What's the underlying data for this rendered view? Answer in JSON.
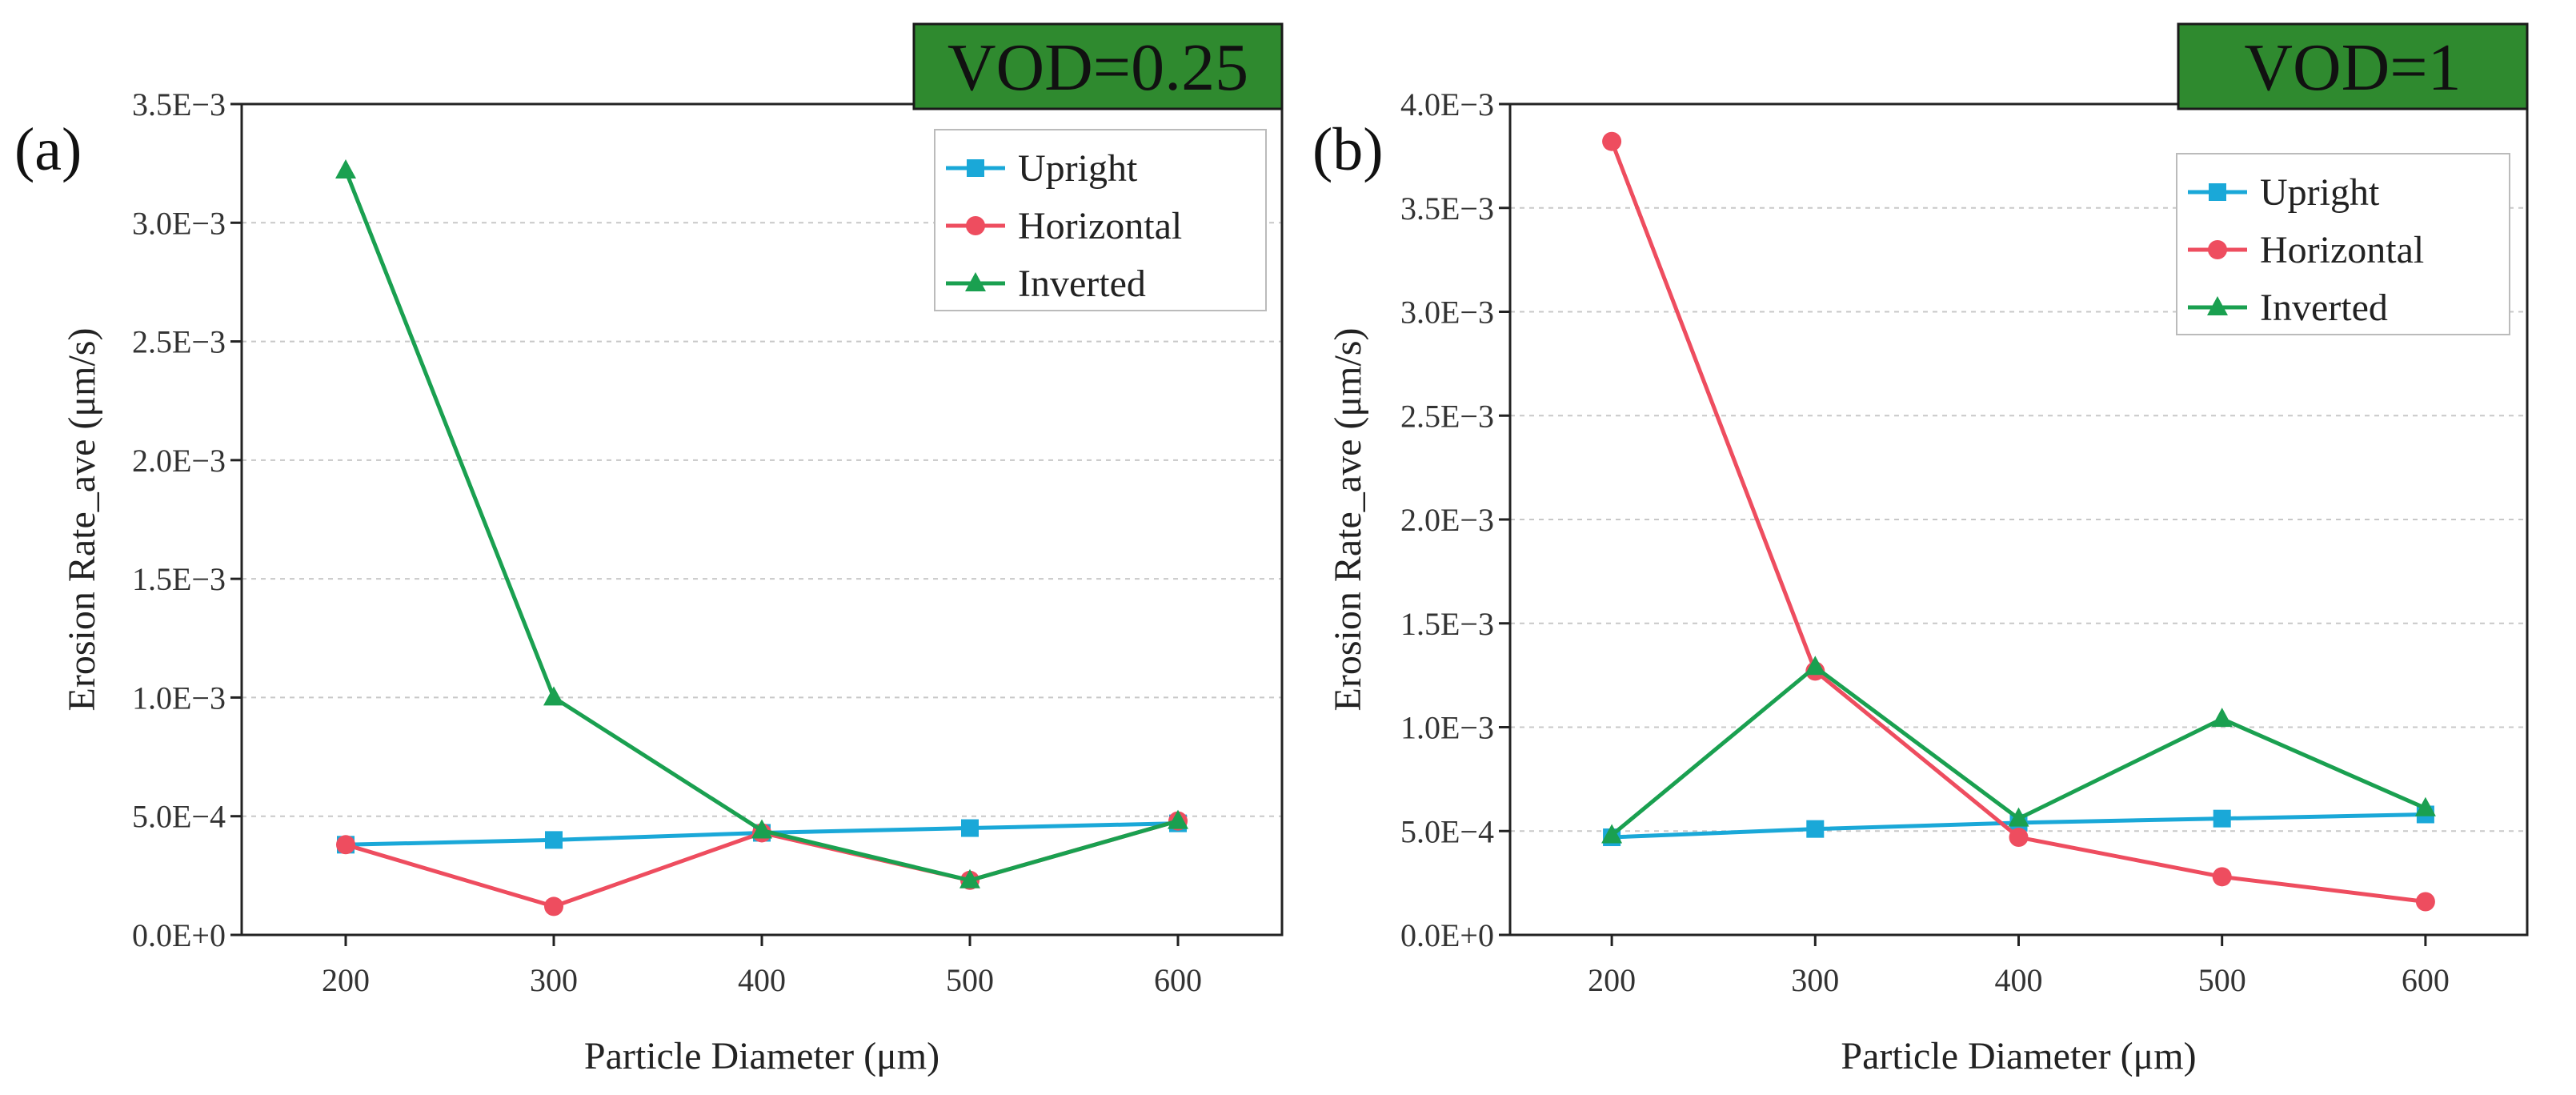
{
  "chart_data": [
    {
      "type": "line",
      "panel_label": "(a)",
      "badge": "VOD=0.25",
      "xlabel": "Particle Diameter (μm)",
      "ylabel": "Erosion Rate_ave  (μm/s)",
      "x": [
        200,
        300,
        400,
        500,
        600
      ],
      "xlim": [
        150,
        650
      ],
      "xticks": [
        "200",
        "300",
        "400",
        "500",
        "600"
      ],
      "ylim": [
        0,
        0.0035
      ],
      "yticks": [
        {
          "value": 0,
          "label": "0.0E+0"
        },
        {
          "value": 0.0005,
          "label": "5.0E−4"
        },
        {
          "value": 0.001,
          "label": "1.0E−3"
        },
        {
          "value": 0.0015,
          "label": "1.5E−3"
        },
        {
          "value": 0.002,
          "label": "2.0E−3"
        },
        {
          "value": 0.0025,
          "label": "2.5E−3"
        },
        {
          "value": 0.003,
          "label": "3.0E−3"
        },
        {
          "value": 0.0035,
          "label": "3.5E−3"
        }
      ],
      "grid": "horizontal dashed",
      "legend_position": "top-right",
      "series": [
        {
          "name": "Upright",
          "color": "#1aa8d8",
          "marker": "square",
          "values": [
            0.00038,
            0.0004,
            0.00043,
            0.00045,
            0.00047
          ]
        },
        {
          "name": "Horizontal",
          "color": "#ee4d5f",
          "marker": "circle",
          "values": [
            0.00038,
            0.00012,
            0.00043,
            0.00023,
            0.00048
          ]
        },
        {
          "name": "Inverted",
          "color": "#1aa050",
          "marker": "triangle",
          "values": [
            0.00322,
            0.001,
            0.00044,
            0.00023,
            0.00048
          ]
        }
      ]
    },
    {
      "type": "line",
      "panel_label": "(b)",
      "badge": "VOD=1",
      "xlabel": "Particle Diameter (μm)",
      "ylabel": "Erosion Rate_ave  (μm/s)",
      "x": [
        200,
        300,
        400,
        500,
        600
      ],
      "xlim": [
        150,
        650
      ],
      "xticks": [
        "200",
        "300",
        "400",
        "500",
        "600"
      ],
      "ylim": [
        0,
        0.004
      ],
      "yticks": [
        {
          "value": 0,
          "label": "0.0E+0"
        },
        {
          "value": 0.0005,
          "label": "5.0E−4"
        },
        {
          "value": 0.001,
          "label": "1.0E−3"
        },
        {
          "value": 0.0015,
          "label": "1.5E−3"
        },
        {
          "value": 0.002,
          "label": "2.0E−3"
        },
        {
          "value": 0.0025,
          "label": "2.5E−3"
        },
        {
          "value": 0.003,
          "label": "3.0E−3"
        },
        {
          "value": 0.0035,
          "label": "3.5E−3"
        },
        {
          "value": 0.004,
          "label": "4.0E−3"
        }
      ],
      "grid": "horizontal dashed",
      "legend_position": "top-right",
      "series": [
        {
          "name": "Upright",
          "color": "#1aa8d8",
          "marker": "square",
          "values": [
            0.00047,
            0.00051,
            0.00054,
            0.00056,
            0.00058
          ]
        },
        {
          "name": "Horizontal",
          "color": "#ee4d5f",
          "marker": "circle",
          "values": [
            0.00382,
            0.00127,
            0.00047,
            0.00028,
            0.00016
          ]
        },
        {
          "name": "Inverted",
          "color": "#1aa050",
          "marker": "triangle",
          "values": [
            0.00048,
            0.00129,
            0.00056,
            0.00104,
            0.00061
          ]
        }
      ]
    }
  ]
}
